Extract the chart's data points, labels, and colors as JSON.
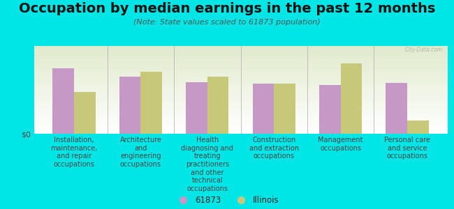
{
  "title": "Occupation by median earnings in the past 12 months",
  "subtitle": "(Note: State values scaled to 61873 population)",
  "categories": [
    "Installation,\nmaintenance,\nand repair\noccupations",
    "Architecture\nand\nengineering\noccupations",
    "Health\ndiagnosing and\ntreating\npractitioners\nand other\ntechnical\noccupations",
    "Construction\nand extraction\noccupations",
    "Management\noccupations",
    "Personal care\nand service\noccupations"
  ],
  "values_61873": [
    0.78,
    0.68,
    0.62,
    0.6,
    0.58,
    0.61
  ],
  "values_illinois": [
    0.5,
    0.74,
    0.68,
    0.6,
    0.84,
    0.16
  ],
  "color_61873": "#c598c5",
  "color_illinois": "#c8c87a",
  "background_color": "#00e5e5",
  "plot_bg_color": "#e8f0d8",
  "ylabel": "$0",
  "legend_label_1": "61873",
  "legend_label_2": "Illinois",
  "watermark": "City-Data.com",
  "bar_width": 0.32,
  "title_fontsize": 14,
  "subtitle_fontsize": 8,
  "tick_fontsize": 7
}
